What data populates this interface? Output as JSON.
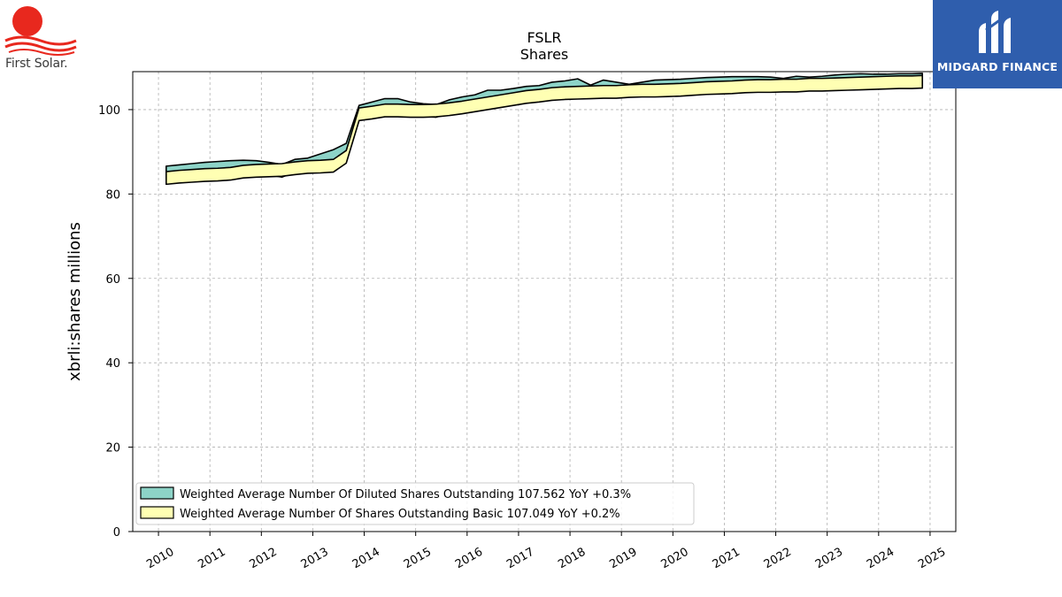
{
  "logos": {
    "left_text": "First Solar.",
    "right_text": "MIDGARD FINANCE"
  },
  "chart_data": {
    "type": "area",
    "title": "FSLR",
    "subtitle": "Shares",
    "xlabel": "",
    "ylabel": "xbrli:shares millions",
    "xlim": [
      2009.5,
      2025.5
    ],
    "ylim": [
      0,
      109
    ],
    "yticks": [
      0,
      20,
      40,
      60,
      80,
      100
    ],
    "xticks": [
      "2010",
      "2011",
      "2012",
      "2013",
      "2014",
      "2015",
      "2016",
      "2017",
      "2018",
      "2019",
      "2020",
      "2021",
      "2022",
      "2023",
      "2024",
      "2025"
    ],
    "grid": true,
    "legend_position": "lower-left",
    "series": [
      {
        "name": "Weighted Average Number Of Diluted Shares Outstanding",
        "legend_label": "Weighted Average Number Of Diluted Shares Outstanding  107.562 YoY +0.3%",
        "color": "#8dd3c7",
        "x": [
          2010.15,
          2010.4,
          2010.65,
          2010.9,
          2011.15,
          2011.4,
          2011.65,
          2011.9,
          2012.15,
          2012.4,
          2012.65,
          2012.9,
          2013.15,
          2013.4,
          2013.65,
          2013.9,
          2014.15,
          2014.4,
          2014.65,
          2014.9,
          2015.15,
          2015.4,
          2015.65,
          2015.9,
          2016.15,
          2016.4,
          2016.65,
          2016.9,
          2017.15,
          2017.4,
          2017.65,
          2017.9,
          2018.15,
          2018.4,
          2018.65,
          2018.9,
          2019.15,
          2019.4,
          2019.65,
          2019.9,
          2020.15,
          2020.4,
          2020.65,
          2020.9,
          2021.15,
          2021.4,
          2021.65,
          2021.9,
          2022.15,
          2022.4,
          2022.65,
          2022.9,
          2023.15,
          2023.4,
          2023.65,
          2023.9,
          2024.15,
          2024.4,
          2024.65,
          2024.85
        ],
        "values": [
          86.6,
          86.9,
          87.2,
          87.5,
          87.7,
          87.9,
          88.0,
          87.9,
          87.5,
          87.0,
          88.2,
          88.5,
          89.5,
          90.5,
          92.0,
          101.0,
          101.8,
          102.6,
          102.6,
          101.8,
          101.4,
          101.2,
          102.3,
          103.0,
          103.5,
          104.6,
          104.6,
          105.0,
          105.5,
          105.7,
          106.5,
          106.8,
          107.3,
          105.8,
          107.0,
          106.5,
          106.0,
          106.5,
          107.0,
          107.1,
          107.2,
          107.4,
          107.6,
          107.7,
          107.8,
          107.8,
          107.8,
          107.7,
          107.4,
          107.9,
          107.7,
          107.9,
          108.2,
          108.4,
          108.5,
          108.4,
          108.4,
          108.5,
          108.5,
          108.6
        ]
      },
      {
        "name": "Weighted Average Number Of Shares Outstanding Basic",
        "legend_label": "Weighted Average Number Of Shares Outstanding Basic  107.049 YoY +0.2%",
        "color": "#ffffb3",
        "x": [
          2010.15,
          2010.4,
          2010.65,
          2010.9,
          2011.15,
          2011.4,
          2011.65,
          2011.9,
          2012.15,
          2012.4,
          2012.65,
          2012.9,
          2013.15,
          2013.4,
          2013.65,
          2013.9,
          2014.15,
          2014.4,
          2014.65,
          2014.9,
          2015.15,
          2015.4,
          2015.65,
          2015.9,
          2016.15,
          2016.4,
          2016.65,
          2016.9,
          2017.15,
          2017.4,
          2017.65,
          2017.9,
          2018.15,
          2018.4,
          2018.65,
          2018.9,
          2019.15,
          2019.4,
          2019.65,
          2019.9,
          2020.15,
          2020.4,
          2020.65,
          2020.9,
          2021.15,
          2021.4,
          2021.65,
          2021.9,
          2022.15,
          2022.4,
          2022.65,
          2022.9,
          2023.15,
          2023.4,
          2023.65,
          2023.9,
          2024.15,
          2024.4,
          2024.65,
          2024.85
        ],
        "values": [
          85.3,
          85.6,
          85.8,
          86.0,
          86.1,
          86.3,
          86.8,
          87.0,
          87.1,
          87.2,
          87.6,
          87.9,
          88.0,
          88.2,
          90.3,
          100.4,
          100.8,
          101.3,
          101.3,
          101.2,
          101.2,
          101.3,
          101.6,
          102.0,
          102.5,
          103.0,
          103.5,
          104.0,
          104.5,
          104.8,
          105.2,
          105.4,
          105.5,
          105.6,
          105.7,
          105.7,
          105.9,
          106.0,
          106.0,
          106.1,
          106.2,
          106.4,
          106.6,
          106.7,
          106.8,
          107.0,
          107.1,
          107.1,
          107.2,
          107.2,
          107.4,
          107.4,
          107.5,
          107.6,
          107.7,
          107.8,
          107.9,
          108.0,
          108.0,
          108.1
        ]
      }
    ]
  }
}
